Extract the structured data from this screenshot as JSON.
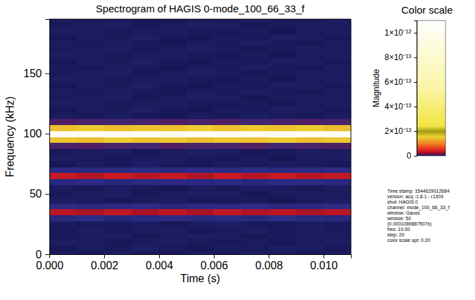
{
  "chart_data": {
    "type": "heatmap",
    "title": "Spectrogram of HAGIS 0-mode_100_66_33_f",
    "x_label": "Time (s)",
    "y_label": "Frequency (kHz)",
    "x": [
      0.0005,
      0.0015,
      0.0025,
      0.0035,
      0.0045,
      0.0055,
      0.0065,
      0.0075,
      0.0085,
      0.0095,
      0.0105
    ],
    "y": [
      0,
      5,
      10,
      15,
      20,
      25,
      30,
      35,
      40,
      45,
      50,
      55,
      60,
      65,
      70,
      75,
      80,
      85,
      90,
      95,
      100,
      105,
      110,
      115,
      120,
      125,
      130,
      135,
      140,
      145,
      150,
      155,
      160,
      165,
      170,
      175,
      180,
      185,
      190,
      195
    ],
    "cells": [
      [
        1.2e-15,
        8e-16,
        1.5e-15,
        1e-15,
        6e-16,
        1.3e-15,
        9e-16,
        1.7e-15,
        1.1e-15,
        7e-16,
        1.4e-15
      ],
      [
        7e-16,
        1.4e-15,
        1e-15,
        1.8e-15,
        9e-16,
        6e-16,
        1.2e-15,
        1e-15,
        1.6e-15,
        1.3e-15,
        8e-16
      ],
      [
        1.6e-15,
        1.1e-15,
        7e-16,
        1.2e-15,
        1.5e-15,
        1e-15,
        8e-16,
        1.3e-15,
        6e-16,
        1.1e-15,
        1.7e-15
      ],
      [
        9e-16,
        1.3e-15,
        1.6e-15,
        7e-16,
        1.1e-15,
        1.8e-15,
        1.4e-15,
        6e-16,
        1e-15,
        1.5e-15,
        1.2e-15
      ],
      [
        1e-15,
        1.5e-15,
        8e-16,
        1.2e-15,
        1.6e-15,
        7e-16,
        1.1e-15,
        1.4e-15,
        9e-16,
        1.3e-15,
        1e-15
      ],
      [
        1.3e-15,
        9e-16,
        1.1e-15,
        1.5e-15,
        7e-16,
        1.2e-15,
        1.6e-15,
        1e-15,
        8e-16,
        1.4e-15,
        1.1e-15
      ],
      [
        3.8e-15,
        4.4e-15,
        3.5e-15,
        4.1e-15,
        4.6e-15,
        3.9e-15,
        4.2e-15,
        3.6e-15,
        4.5e-15,
        4e-15,
        3.7e-15
      ],
      [
        3.2e-14,
        2.6e-14,
        3.4e-14,
        2.7e-14,
        3.3e-14,
        2.6e-14,
        3.4e-14,
        2.8e-14,
        3.3e-14,
        2.7e-14,
        3.2e-14
      ],
      [
        4.3e-15,
        3.7e-15,
        4e-15,
        4.5e-15,
        3.6e-15,
        4.2e-15,
        3.9e-15,
        4.4e-15,
        3.8e-15,
        4.1e-15,
        4.6e-15
      ],
      [
        1.6e-15,
        1.1e-15,
        7e-16,
        1.2e-15,
        1.5e-15,
        1e-15,
        8e-16,
        1.3e-15,
        6e-16,
        1.1e-15,
        1.7e-15
      ],
      [
        9e-16,
        1.3e-15,
        1.6e-15,
        7e-16,
        1.1e-15,
        1.8e-15,
        1.4e-15,
        6e-16,
        1e-15,
        1.5e-15,
        1.2e-15
      ],
      [
        1.2e-15,
        8e-16,
        1.5e-15,
        1e-15,
        6e-16,
        1.3e-15,
        9e-16,
        1.7e-15,
        1.1e-15,
        7e-16,
        1.4e-15
      ],
      [
        3.8e-15,
        4.4e-15,
        3.5e-15,
        4.1e-15,
        4.6e-15,
        3.9e-15,
        4.2e-15,
        3.6e-15,
        4.5e-15,
        4e-15,
        3.7e-15
      ],
      [
        3.6e-14,
        3e-14,
        3.7e-14,
        3.1e-14,
        3.6e-14,
        2.9e-14,
        3.7e-14,
        3e-14,
        3.6e-14,
        3.1e-14,
        3.5e-14
      ],
      [
        4.3e-15,
        3.7e-15,
        4e-15,
        4.5e-15,
        3.6e-15,
        4.2e-15,
        3.9e-15,
        4.4e-15,
        3.8e-15,
        4.1e-15,
        4.6e-15
      ],
      [
        7e-16,
        1.4e-15,
        1e-15,
        1.8e-15,
        9e-16,
        6e-16,
        1.2e-15,
        1e-15,
        1.6e-15,
        1.3e-15,
        8e-16
      ],
      [
        1.6e-15,
        1.1e-15,
        7e-16,
        1.2e-15,
        1.5e-15,
        1e-15,
        8e-16,
        1.3e-15,
        6e-16,
        1.1e-15,
        1.7e-15
      ],
      [
        9e-16,
        1.3e-15,
        1.6e-15,
        7e-16,
        1.1e-15,
        1.8e-15,
        1.4e-15,
        6e-16,
        1e-15,
        1.5e-15,
        1.2e-15
      ],
      [
        8e-15,
        9e-15,
        8e-15,
        7e-15,
        9e-15,
        8e-15,
        8e-15,
        9e-15,
        7e-15,
        8e-15,
        9e-15
      ],
      [
        1.45e-13,
        1.4e-13,
        1.5e-13,
        1.42e-13,
        1.48e-13,
        1.4e-13,
        1.46e-13,
        1.43e-13,
        1.5e-13,
        1.41e-13,
        1.47e-13
      ],
      [
        1.05e-12,
        1.04e-12,
        1.06e-12,
        1.05e-12,
        1.04e-12,
        1.06e-12,
        1.05e-12,
        1.04e-12,
        1.06e-12,
        1.05e-12,
        1.05e-12
      ],
      [
        1.42e-13,
        1.48e-13,
        1.4e-13,
        1.46e-13,
        1.43e-13,
        1.5e-13,
        1.41e-13,
        1.47e-13,
        1.44e-13,
        1.49e-13,
        1.4e-13
      ],
      [
        9e-15,
        8e-15,
        7e-15,
        8e-15,
        9e-15,
        8e-15,
        9e-15,
        7e-15,
        8e-15,
        9e-15,
        8e-15
      ],
      [
        1.2e-15,
        8e-16,
        1.5e-15,
        1e-15,
        6e-16,
        1.3e-15,
        9e-16,
        1.7e-15,
        1.1e-15,
        7e-16,
        1.4e-15
      ],
      [
        7e-16,
        1.4e-15,
        1e-15,
        1.8e-15,
        9e-16,
        6e-16,
        1.2e-15,
        1e-15,
        1.6e-15,
        1.3e-15,
        8e-16
      ],
      [
        1.6e-15,
        1.1e-15,
        7e-16,
        1.2e-15,
        1.5e-15,
        1e-15,
        8e-16,
        1.3e-15,
        6e-16,
        1.1e-15,
        1.7e-15
      ],
      [
        9e-16,
        1.3e-15,
        1.6e-15,
        7e-16,
        1.1e-15,
        1.8e-15,
        1.4e-15,
        6e-16,
        1e-15,
        1.5e-15,
        1.2e-15
      ],
      [
        1.2e-15,
        8e-16,
        1.5e-15,
        1e-15,
        6e-16,
        1.3e-15,
        9e-16,
        1.7e-15,
        1.1e-15,
        7e-16,
        1.4e-15
      ],
      [
        7e-16,
        1.4e-15,
        1e-15,
        1.8e-15,
        9e-16,
        6e-16,
        1.2e-15,
        1e-15,
        1.6e-15,
        1.3e-15,
        8e-16
      ],
      [
        1.6e-15,
        1.1e-15,
        7e-16,
        1.2e-15,
        1.5e-15,
        1e-15,
        8e-16,
        1.3e-15,
        6e-16,
        1.1e-15,
        1.7e-15
      ],
      [
        9e-16,
        1.3e-15,
        1.6e-15,
        7e-16,
        1.1e-15,
        1.8e-15,
        1.4e-15,
        6e-16,
        1e-15,
        1.5e-15,
        1.2e-15
      ],
      [
        1.2e-15,
        8e-16,
        1.5e-15,
        1e-15,
        6e-16,
        1.3e-15,
        9e-16,
        1.7e-15,
        1.1e-15,
        7e-16,
        1.4e-15
      ],
      [
        7e-16,
        1.4e-15,
        1e-15,
        1.8e-15,
        9e-16,
        6e-16,
        1.2e-15,
        1e-15,
        1.6e-15,
        1.3e-15,
        8e-16
      ],
      [
        1.6e-15,
        1.1e-15,
        7e-16,
        1.2e-15,
        1.5e-15,
        1e-15,
        8e-16,
        1.3e-15,
        6e-16,
        1.1e-15,
        1.7e-15
      ],
      [
        9e-16,
        1.3e-15,
        1.6e-15,
        7e-16,
        1.1e-15,
        1.8e-15,
        1.4e-15,
        6e-16,
        1e-15,
        1.5e-15,
        1.2e-15
      ],
      [
        1.2e-15,
        8e-16,
        1.5e-15,
        1e-15,
        6e-16,
        1.3e-15,
        9e-16,
        1.7e-15,
        1.1e-15,
        7e-16,
        1.4e-15
      ],
      [
        7e-16,
        1.4e-15,
        1e-15,
        1.8e-15,
        9e-16,
        6e-16,
        1.2e-15,
        1e-15,
        1.6e-15,
        1.3e-15,
        8e-16
      ],
      [
        1.6e-15,
        1.1e-15,
        7e-16,
        1.2e-15,
        1.5e-15,
        1e-15,
        8e-16,
        1.3e-15,
        6e-16,
        1.1e-15,
        1.7e-15
      ],
      [
        9e-16,
        1.3e-15,
        1.6e-15,
        7e-16,
        1.1e-15,
        1.8e-15,
        1.4e-15,
        6e-16,
        1e-15,
        1.5e-15,
        1.2e-15
      ],
      [
        1.2e-15,
        8e-16,
        1.5e-15,
        1e-15,
        6e-16,
        1.3e-15,
        9e-16,
        1.7e-15,
        1.1e-15,
        7e-16,
        1.4e-15
      ]
    ],
    "xlim": [
      0,
      0.011
    ],
    "ylim": [
      0,
      195
    ],
    "xticks": [
      {
        "value": 0,
        "label": "0.000"
      },
      {
        "value": 0.002,
        "label": "0.002"
      },
      {
        "value": 0.004,
        "label": "0.004"
      },
      {
        "value": 0.006,
        "label": "0.006"
      },
      {
        "value": 0.008,
        "label": "0.008"
      },
      {
        "value": 0.01,
        "label": "0.010"
      }
    ],
    "yticks": [
      0,
      50,
      100,
      150
    ],
    "colorbar": {
      "title": "Color scale",
      "label": "Magnitude",
      "range": [
        0,
        1.1e-12
      ],
      "ticks": [
        0,
        {
          "value": 2e-13,
          "label": "2×10⁻¹³"
        },
        {
          "value": 4e-13,
          "label": "4×10⁻¹³"
        },
        {
          "value": 6e-13,
          "label": "6×10⁻¹³"
        },
        {
          "value": 8e-13,
          "label": "8×10⁻¹³"
        },
        {
          "value": 1e-12,
          "label": "1×10⁻¹²"
        }
      ]
    },
    "info": [
      "Time stamp: 1544629012684",
      "version: acq -1.8.1 - r1303",
      "shot: HAGIS 0",
      "channel: mode_100_66_33_f",
      "window: Gauss",
      "winsize: 50",
      "(0.0001089887507s)",
      "fres: 10.00",
      "step: 20",
      "color scale opt: 0.20"
    ]
  }
}
